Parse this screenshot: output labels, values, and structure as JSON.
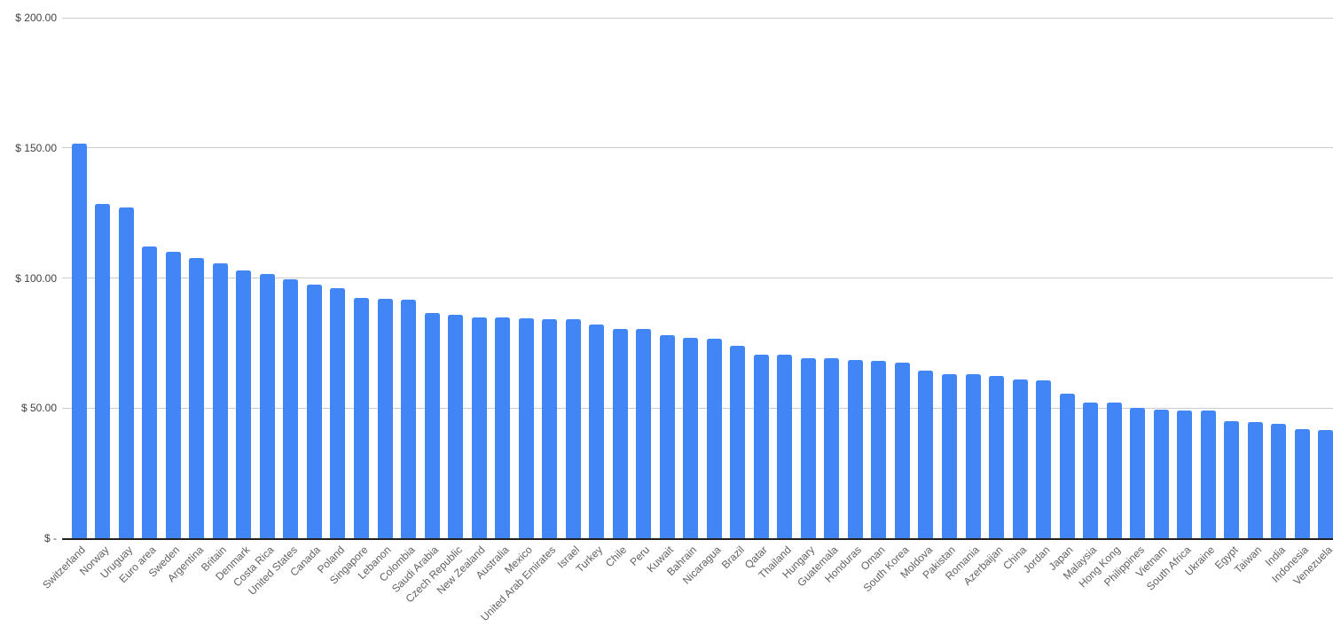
{
  "chart_data": {
    "type": "bar",
    "categories": [
      "Switzerland",
      "Norway",
      "Uruguay",
      "Euro area",
      "Sweden",
      "Argentina",
      "Britain",
      "Denmark",
      "Costa Rica",
      "United States",
      "Canada",
      "Poland",
      "Singapore",
      "Lebanon",
      "Colombia",
      "Saudi Arabia",
      "Czech Republic",
      "New Zealand",
      "Australia",
      "Mexico",
      "United Arab Emirates",
      "Israel",
      "Turkey",
      "Chile",
      "Peru",
      "Kuwait",
      "Bahrain",
      "Nicaragua",
      "Brazil",
      "Qatar",
      "Thailand",
      "Hungary",
      "Guatemala",
      "Honduras",
      "Oman",
      "South Korea",
      "Moldova",
      "Pakistan",
      "Romania",
      "Azerbaijan",
      "China",
      "Jordan",
      "Japan",
      "Malaysia",
      "Hong Kong",
      "Philippines",
      "Vietnam",
      "South Africa",
      "Ukraine",
      "Egypt",
      "Taiwan",
      "India",
      "Indonesia",
      "Venezuela"
    ],
    "values": [
      151.5,
      128.5,
      127,
      112,
      110,
      107.5,
      105.5,
      103,
      101.5,
      99.5,
      97.5,
      96,
      92.5,
      92,
      91.5,
      86.5,
      86,
      85,
      85,
      84.5,
      84,
      84,
      82,
      80.5,
      80.5,
      78,
      77,
      76.5,
      74,
      70.5,
      70.5,
      69,
      69,
      68.5,
      68,
      67.5,
      64.5,
      63,
      63,
      62.5,
      61,
      60.5,
      55.5,
      52,
      52,
      50,
      49.5,
      49,
      49,
      45,
      44.5,
      44,
      42,
      41.5
    ],
    "title": "",
    "xlabel": "",
    "ylabel": "",
    "ylim": [
      0,
      200
    ],
    "y_axis": {
      "tick_values": [
        200,
        150,
        100,
        50,
        0
      ],
      "tick_labels": [
        "$ 200.00",
        "$ 150.00",
        "$ 100.00",
        "$ 50.00",
        "$ -"
      ]
    },
    "x_axis": {
      "label_rotation_deg": -45
    },
    "legend": "none",
    "grid": true,
    "colors": {
      "bar": "#4285f4",
      "gridline": "#cccccc",
      "axis_line": "#212121",
      "y_label_text": "#424242",
      "x_label_text": "#616161",
      "background": "#ffffff"
    }
  }
}
